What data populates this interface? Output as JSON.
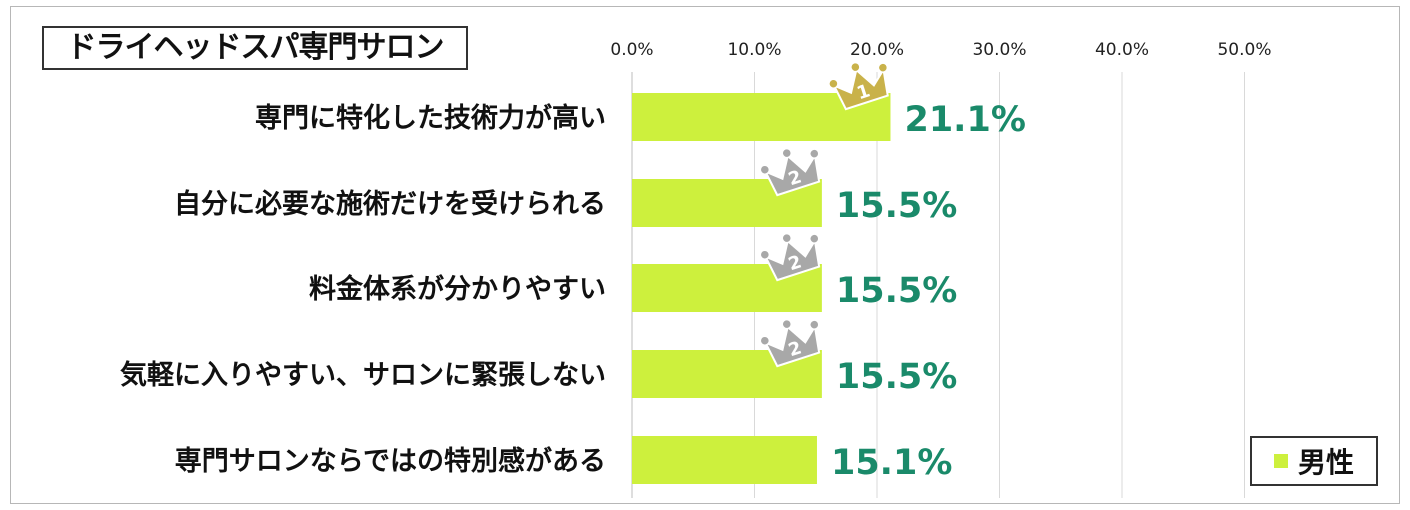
{
  "chart_data": {
    "type": "bar",
    "orientation": "horizontal",
    "title": "ドライヘッドスパ専門サロン",
    "categories": [
      "専門に特化した技術力が高い",
      "自分に必要な施術だけを受けられる",
      "料金体系が分かりやすい",
      "気軽に入りやすい、サロンに緊張しない",
      "専門サロンならではの特別感がある"
    ],
    "series": [
      {
        "name": "男性",
        "values": [
          21.1,
          15.5,
          15.5,
          15.5,
          15.1
        ],
        "color": "#cdf03d"
      }
    ],
    "data_labels": [
      "21.1%",
      "15.5%",
      "15.5%",
      "15.5%",
      "15.1%"
    ],
    "rank_badges": [
      "1",
      "2",
      "2",
      "2",
      ""
    ],
    "xlim": [
      0,
      60
    ],
    "x_ticks": [
      "0.0%",
      "10.0%",
      "20.0%",
      "30.0%",
      "40.0%",
      "50.0%"
    ],
    "grid": true,
    "legend_position": "bottom-right",
    "label_color": "#1a8a6a",
    "gold": "#c9b24a",
    "silver": "#a8a8a8"
  }
}
